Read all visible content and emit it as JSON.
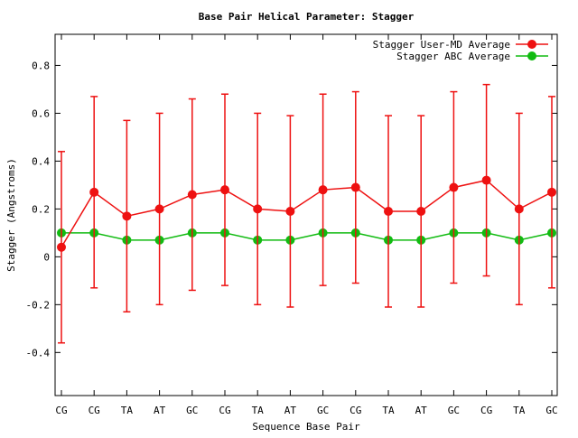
{
  "chart_data": {
    "type": "line",
    "title": "Base Pair Helical Parameter: Stagger",
    "xlabel": "Sequence Base Pair",
    "ylabel": "Stagger (Angstroms)",
    "categories": [
      "CG",
      "CG",
      "TA",
      "AT",
      "GC",
      "CG",
      "TA",
      "AT",
      "GC",
      "CG",
      "TA",
      "AT",
      "GC",
      "CG",
      "TA",
      "GC"
    ],
    "ylim": [
      -0.58,
      0.93
    ],
    "yticks": [
      {
        "value": -0.4,
        "label": "-0.4"
      },
      {
        "value": -0.2,
        "label": "-0.2"
      },
      {
        "value": 0,
        "label": "0"
      },
      {
        "value": 0.2,
        "label": "0.2"
      },
      {
        "value": 0.4,
        "label": "0.4"
      },
      {
        "value": 0.6,
        "label": "0.6"
      },
      {
        "value": 0.8,
        "label": "0.8"
      }
    ],
    "grid": false,
    "legend_position": "top-right",
    "series": [
      {
        "name": "Stagger User-MD Average",
        "color": "#ee1111",
        "values": [
          0.04,
          0.27,
          0.17,
          0.2,
          0.26,
          0.28,
          0.2,
          0.19,
          0.28,
          0.29,
          0.19,
          0.19,
          0.29,
          0.32,
          0.2,
          0.27
        ],
        "error": [
          0.4,
          0.4,
          0.4,
          0.4,
          0.4,
          0.4,
          0.4,
          0.4,
          0.4,
          0.4,
          0.4,
          0.4,
          0.4,
          0.4,
          0.4,
          0.4
        ]
      },
      {
        "name": "Stagger ABC Average",
        "color": "#11bb11",
        "values": [
          0.1,
          0.1,
          0.07,
          0.07,
          0.1,
          0.1,
          0.07,
          0.07,
          0.1,
          0.1,
          0.07,
          0.07,
          0.1,
          0.1,
          0.07,
          0.1
        ]
      }
    ]
  }
}
